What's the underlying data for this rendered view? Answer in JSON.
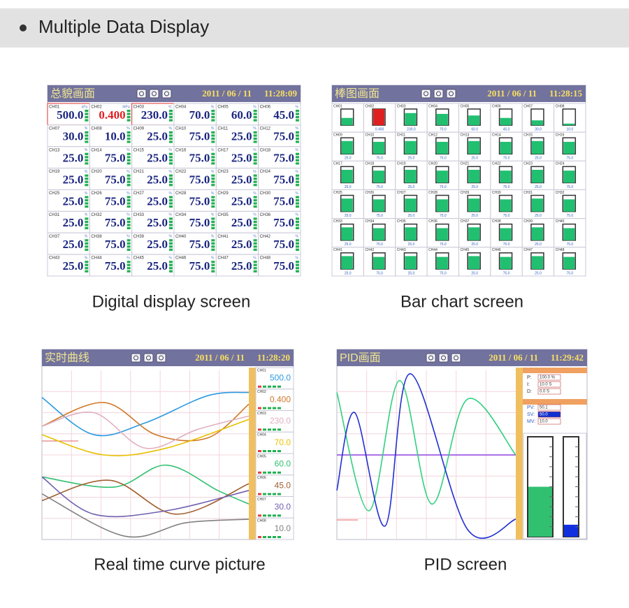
{
  "header": {
    "title": "Multiple Data Display"
  },
  "value_color": "#1a2580",
  "channels": [
    {
      "name": "CH01",
      "value": "500.0",
      "unit": "kPa"
    },
    {
      "name": "CH02",
      "value": "0.400",
      "unit": "MPa",
      "color": "#e02020"
    },
    {
      "name": "CH03",
      "value": "230.0",
      "unit": "℃"
    },
    {
      "name": "CH04",
      "value": "70.0",
      "unit": "%"
    },
    {
      "name": "CH05",
      "value": "60.0",
      "unit": "%"
    },
    {
      "name": "CH06",
      "value": "45.0",
      "unit": "%"
    },
    {
      "name": "CH07",
      "value": "30.0",
      "unit": "%"
    },
    {
      "name": "CH08",
      "value": "10.0",
      "unit": "%"
    },
    {
      "name": "CH09",
      "value": "25.0",
      "unit": "%"
    },
    {
      "name": "CH10",
      "value": "75.0",
      "unit": "%"
    },
    {
      "name": "CH11",
      "value": "25.0",
      "unit": "%"
    },
    {
      "name": "CH12",
      "value": "75.0",
      "unit": "%"
    },
    {
      "name": "CH13",
      "value": "25.0",
      "unit": "%"
    },
    {
      "name": "CH14",
      "value": "75.0",
      "unit": "%"
    },
    {
      "name": "CH15",
      "value": "25.0",
      "unit": "%"
    },
    {
      "name": "CH16",
      "value": "75.0",
      "unit": "%"
    },
    {
      "name": "CH17",
      "value": "25.0",
      "unit": "%"
    },
    {
      "name": "CH18",
      "value": "75.0",
      "unit": "%"
    },
    {
      "name": "CH19",
      "value": "25.0",
      "unit": "%"
    },
    {
      "name": "CH20",
      "value": "75.0",
      "unit": "%"
    },
    {
      "name": "CH21",
      "value": "25.0",
      "unit": "%"
    },
    {
      "name": "CH22",
      "value": "75.0",
      "unit": "%"
    },
    {
      "name": "CH23",
      "value": "25.0",
      "unit": "%"
    },
    {
      "name": "CH24",
      "value": "75.0",
      "unit": "%"
    },
    {
      "name": "CH25",
      "value": "25.0",
      "unit": "%"
    },
    {
      "name": "CH26",
      "value": "75.0",
      "unit": "%"
    },
    {
      "name": "CH27",
      "value": "25.0",
      "unit": "%"
    },
    {
      "name": "CH28",
      "value": "75.0",
      "unit": "%"
    },
    {
      "name": "CH29",
      "value": "25.0",
      "unit": "%"
    },
    {
      "name": "CH30",
      "value": "75.0",
      "unit": "%"
    },
    {
      "name": "CH31",
      "value": "25.0",
      "unit": "%"
    },
    {
      "name": "CH32",
      "value": "75.0",
      "unit": "%"
    },
    {
      "name": "CH33",
      "value": "25.0",
      "unit": "%"
    },
    {
      "name": "CH34",
      "value": "75.0",
      "unit": "%"
    },
    {
      "name": "CH35",
      "value": "25.0",
      "unit": "%"
    },
    {
      "name": "CH36",
      "value": "75.0",
      "unit": "%"
    },
    {
      "name": "CH37",
      "value": "25.0",
      "unit": "%"
    },
    {
      "name": "CH38",
      "value": "75.0",
      "unit": "%"
    },
    {
      "name": "CH39",
      "value": "25.0",
      "unit": "%"
    },
    {
      "name": "CH40",
      "value": "75.0",
      "unit": "%"
    },
    {
      "name": "CH41",
      "value": "25.0",
      "unit": "%"
    },
    {
      "name": "CH42",
      "value": "75.0",
      "unit": "%"
    },
    {
      "name": "CH43",
      "value": "25.0",
      "unit": "%"
    },
    {
      "name": "CH44",
      "value": "75.0",
      "unit": "%"
    },
    {
      "name": "CH45",
      "value": "25.0",
      "unit": "%"
    },
    {
      "name": "CH46",
      "value": "75.0",
      "unit": "%"
    },
    {
      "name": "CH47",
      "value": "25.0",
      "unit": "%"
    },
    {
      "name": "CH48",
      "value": "75.0",
      "unit": "%"
    }
  ],
  "panels": [
    {
      "title": "总貌画面",
      "date": "2011 / 06 / 11",
      "time": "11:28:09",
      "caption": "Digital display screen"
    },
    {
      "title": "棒图画面",
      "date": "2011 / 06 / 11",
      "time": "11:28:15",
      "caption": "Bar chart screen",
      "bar_levels": [
        45,
        100,
        75,
        70,
        60,
        45,
        30,
        10,
        80,
        75,
        80,
        75,
        80,
        75,
        80,
        75,
        80,
        75,
        80,
        75,
        80,
        75,
        80,
        75,
        80,
        75,
        80,
        75,
        80,
        75,
        80,
        75,
        80,
        75,
        80,
        75,
        80,
        75,
        80,
        75,
        80,
        75,
        80,
        75,
        80,
        75,
        80,
        75
      ]
    },
    {
      "title": "实时曲线",
      "date": "2011 / 06 / 11",
      "time": "11:28:20",
      "caption": "Real time curve picture",
      "series": [
        {
          "color": "#2a9ae0",
          "x": [
            0,
            25,
            50,
            80,
            100
          ],
          "values": [
            84,
            62,
            69,
            85,
            87
          ]
        },
        {
          "color": "#d07828",
          "x": [
            0,
            30,
            55,
            80,
            100
          ],
          "values": [
            67,
            81,
            62,
            60,
            80
          ]
        },
        {
          "color": "#e0b0c0",
          "x": [
            0,
            25,
            50,
            75,
            100
          ],
          "values": [
            67,
            75,
            54,
            65,
            73
          ]
        },
        {
          "color": "#e8c000",
          "x": [
            0,
            30,
            60,
            100
          ],
          "values": [
            62,
            50,
            54,
            71
          ]
        },
        {
          "color": "#30c070",
          "x": [
            0,
            35,
            60,
            85,
            100
          ],
          "values": [
            37,
            31,
            44,
            29,
            21
          ]
        },
        {
          "color": "#a06030",
          "x": [
            0,
            33,
            65,
            100
          ],
          "values": [
            23,
            35,
            15,
            33
          ]
        },
        {
          "color": "#7060b0",
          "x": [
            0,
            25,
            60,
            100
          ],
          "values": [
            37,
            15,
            17,
            29
          ]
        },
        {
          "color": "#808080",
          "x": [
            0,
            40,
            70,
            100
          ],
          "values": [
            27,
            2,
            10,
            12
          ]
        }
      ]
    },
    {
      "title": "PID画面",
      "date": "2011 / 06 / 11",
      "time": "11:29:42",
      "caption": "PID screen",
      "params": [
        {
          "label": "P:",
          "value": "100.0 %"
        },
        {
          "label": "I:",
          "value": "10.0 S"
        },
        {
          "label": "D:",
          "value": "0.0 S"
        },
        {
          "label": "PV:",
          "value": "50.1"
        },
        {
          "label": "SV:",
          "value": "50.0"
        },
        {
          "label": "MV:",
          "value": "10.0"
        }
      ],
      "setpoint": 50,
      "series": [
        {
          "color": "#30d080",
          "x": [
            0,
            18,
            35,
            53,
            73,
            100
          ],
          "values": [
            87,
            17,
            94,
            21,
            83,
            50
          ]
        },
        {
          "color": "#2030d0",
          "x": [
            0,
            10,
            27,
            41,
            73,
            100
          ],
          "values": [
            29,
            75,
            8,
            98,
            6,
            12
          ]
        }
      ],
      "gauges": [
        {
          "level": 50,
          "color": "#30c070"
        },
        {
          "level": 12,
          "color": "#1030e0"
        }
      ]
    }
  ]
}
